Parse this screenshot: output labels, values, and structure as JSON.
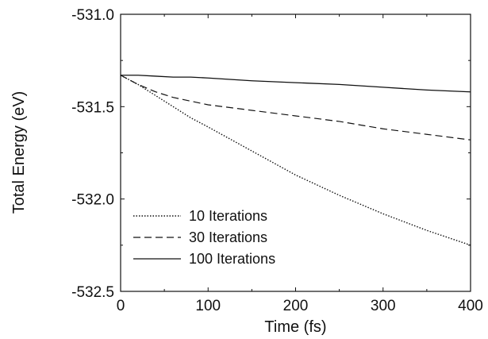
{
  "chart_data": {
    "type": "line",
    "title": "",
    "xlabel": "Time (fs)",
    "ylabel": "Total Energy (eV)",
    "xlim": [
      0,
      400
    ],
    "ylim": [
      -532.5,
      -531.0
    ],
    "xticks": [
      0,
      100,
      200,
      300,
      400
    ],
    "xtick_labels": [
      "0",
      "100",
      "200",
      "300",
      "400"
    ],
    "yticks": [
      -532.5,
      -532.0,
      -531.5,
      -531.0
    ],
    "ytick_labels": [
      "-532.5",
      "-532.0",
      "-531.5",
      "-531.0"
    ],
    "grid": false,
    "legend_position": "lower-left",
    "x": [
      0,
      20,
      40,
      60,
      80,
      100,
      150,
      200,
      250,
      300,
      350,
      400
    ],
    "series": [
      {
        "name": "10 Iterations",
        "style": "dotted",
        "values": [
          -531.33,
          -531.38,
          -531.44,
          -531.5,
          -531.56,
          -531.61,
          -531.74,
          -531.87,
          -531.98,
          -532.08,
          -532.17,
          -532.25
        ]
      },
      {
        "name": "30 Iterations",
        "style": "dashed",
        "values": [
          -531.33,
          -531.38,
          -531.42,
          -531.45,
          -531.47,
          -531.49,
          -531.52,
          -531.55,
          -531.58,
          -531.62,
          -531.65,
          -531.68
        ]
      },
      {
        "name": "100 Iterations",
        "style": "solid",
        "values": [
          -531.33,
          -531.33,
          -531.335,
          -531.34,
          -531.34,
          -531.345,
          -531.36,
          -531.37,
          -531.38,
          -531.395,
          -531.41,
          -531.42
        ]
      }
    ]
  }
}
